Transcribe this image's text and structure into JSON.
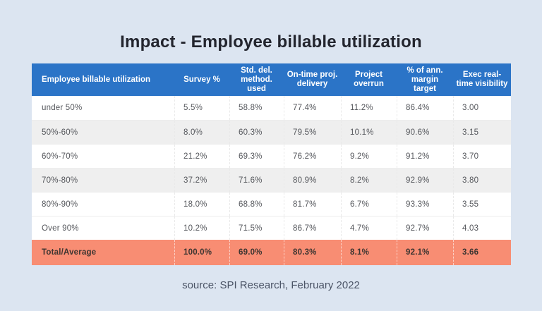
{
  "page": {
    "title": "Impact - Employee billable utilization",
    "source": "source: SPI Research, February 2022"
  },
  "colors": {
    "background": "#dce5f1",
    "header_bg": "#2b74c7",
    "header_text": "#ffffff",
    "row_band_bg": "#efefef",
    "total_row_bg": "#f88d73",
    "title_text": "#23252e",
    "data_text": "#55575c"
  },
  "chart_data": {
    "type": "table",
    "title": "Impact - Employee billable utilization",
    "columns": [
      "Employee billable utilization",
      "Survey %",
      "Std. del. method. used",
      "On-time proj. delivery",
      "Project overrun",
      "% of ann. margin target",
      "Exec real-time visibility"
    ],
    "rows": [
      [
        "under 50%",
        "5.5%",
        "58.8%",
        "77.4%",
        "11.2%",
        "86.4%",
        "3.00"
      ],
      [
        "50%-60%",
        "8.0%",
        "60.3%",
        "79.5%",
        "10.1%",
        "90.6%",
        "3.15"
      ],
      [
        "60%-70%",
        "21.2%",
        "69.3%",
        "76.2%",
        "9.2%",
        "91.2%",
        "3.70"
      ],
      [
        "70%-80%",
        "37.2%",
        "71.6%",
        "80.9%",
        "8.2%",
        "92.9%",
        "3.80"
      ],
      [
        "80%-90%",
        "18.0%",
        "68.8%",
        "81.7%",
        "6.7%",
        "93.3%",
        "3.55"
      ],
      [
        "Over 90%",
        "10.2%",
        "71.5%",
        "86.7%",
        "4.7%",
        "92.7%",
        "4.03"
      ]
    ],
    "total_row": [
      "Total/Average",
      "100.0%",
      "69.0%",
      "80.3%",
      "8.1%",
      "92.1%",
      "3.66"
    ],
    "source": "source: SPI Research, February 2022"
  }
}
